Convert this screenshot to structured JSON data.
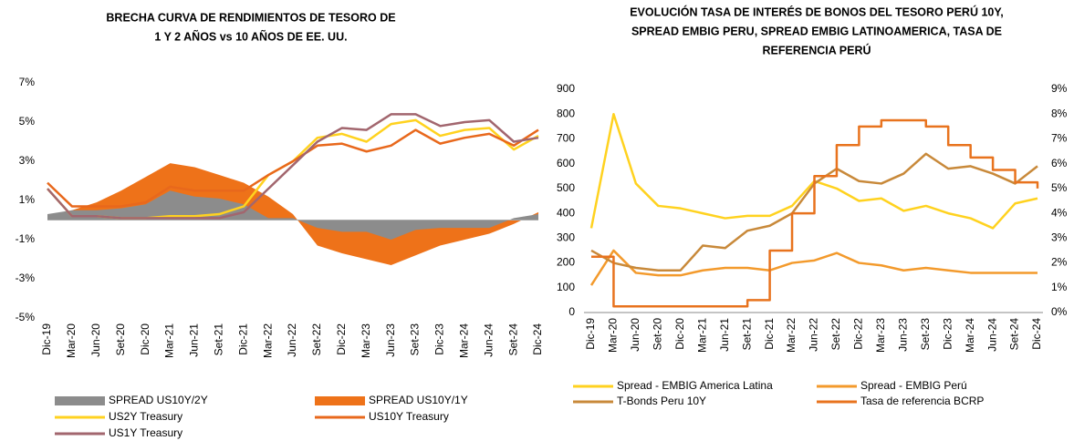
{
  "chart_data": [
    {
      "type": "line",
      "title": [
        "BRECHA CURVA DE RENDIMIENTOS DE TESORO DE",
        "1 Y 2 AÑOS vs 10 AÑOS DE EE. UU."
      ],
      "categories": [
        "Dic-19",
        "Mar-20",
        "Jun-20",
        "Set-20",
        "Dic-20",
        "Mar-21",
        "Jun-21",
        "Set-21",
        "Dic-21",
        "Mar-22",
        "Jun-22",
        "Set-22",
        "Dic-22",
        "Mar-23",
        "Jun-23",
        "Set-23",
        "Dic-23",
        "Mar-24",
        "Jun-24",
        "Set-24",
        "Dic-24"
      ],
      "ylim": [
        -5,
        7
      ],
      "yticks": [
        {
          "value": 7,
          "label": "7%"
        },
        {
          "value": 5,
          "label": "5%"
        },
        {
          "value": 3,
          "label": "3%"
        },
        {
          "value": 1,
          "label": "1%"
        },
        {
          "value": -1,
          "label": "-1%"
        },
        {
          "value": -3,
          "label": "-3%"
        },
        {
          "value": -5,
          "label": "-5%"
        }
      ],
      "grid": false,
      "series": [
        {
          "name": "SPREAD US10Y/1Y",
          "type": "area",
          "color": "#ee7219",
          "values": [
            0.2,
            0.5,
            0.9,
            1.5,
            2.2,
            2.9,
            2.7,
            2.3,
            1.9,
            1.2,
            0.3,
            -1.3,
            -1.7,
            -2.0,
            -2.3,
            -1.8,
            -1.3,
            -1.0,
            -0.7,
            -0.2,
            0.4
          ]
        },
        {
          "name": "SPREAD US10Y/2Y",
          "type": "area",
          "color": "#8c8c8c",
          "values": [
            0.3,
            0.5,
            0.5,
            0.6,
            0.8,
            1.5,
            1.2,
            1.1,
            0.8,
            0.1,
            0.1,
            -0.4,
            -0.6,
            -0.6,
            -1.0,
            -0.5,
            -0.4,
            -0.4,
            -0.4,
            0.1,
            0.3
          ]
        },
        {
          "name": "US2Y Treasury",
          "type": "line",
          "color": "#ffd21f",
          "values": [
            1.6,
            0.2,
            0.2,
            0.1,
            0.1,
            0.2,
            0.2,
            0.3,
            0.7,
            2.3,
            3.0,
            4.2,
            4.4,
            4.0,
            4.9,
            5.1,
            4.3,
            4.6,
            4.7,
            3.6,
            4.3
          ]
        },
        {
          "name": "US10Y Treasury",
          "type": "line",
          "color": "#e8681c",
          "values": [
            1.9,
            0.7,
            0.7,
            0.7,
            0.9,
            1.7,
            1.5,
            1.5,
            1.5,
            2.3,
            3.0,
            3.8,
            3.9,
            3.5,
            3.8,
            4.6,
            3.9,
            4.2,
            4.4,
            3.8,
            4.6
          ]
        },
        {
          "name": "US1Y Treasury",
          "type": "line",
          "color": "#a2666e",
          "values": [
            1.6,
            0.2,
            0.2,
            0.1,
            0.1,
            0.1,
            0.1,
            0.1,
            0.4,
            1.6,
            2.8,
            4.0,
            4.7,
            4.6,
            5.4,
            5.4,
            4.8,
            5.0,
            5.1,
            4.0,
            4.2
          ]
        }
      ]
    },
    {
      "type": "line",
      "title": [
        "EVOLUCIÓN TASA DE INTERÉS DE BONOS DEL TESORO PERÚ 10Y,",
        "SPREAD EMBIG PERU, SPREAD EMBIG LATINOAMERICA, TASA DE",
        "REFERENCIA PERÚ"
      ],
      "categories": [
        "Dic-19",
        "Mar-20",
        "Jun-20",
        "Set-20",
        "Dic-20",
        "Mar-21",
        "Jun-21",
        "Set-21",
        "Dic-21",
        "Mar-22",
        "Jun-22",
        "Set-22",
        "Dic-22",
        "Mar-23",
        "Jun-23",
        "Set-23",
        "Dic-23",
        "Mar-24",
        "Jun-24",
        "Set-24",
        "Dic-24"
      ],
      "ylim": [
        0,
        900
      ],
      "yticks": [
        0,
        100,
        200,
        300,
        400,
        500,
        600,
        700,
        800,
        900
      ],
      "y2lim": [
        0,
        9
      ],
      "y2ticks": [
        {
          "value": 0,
          "label": "0%"
        },
        {
          "value": 1,
          "label": "1%"
        },
        {
          "value": 2,
          "label": "2%"
        },
        {
          "value": 3,
          "label": "3%"
        },
        {
          "value": 4,
          "label": "4%"
        },
        {
          "value": 5,
          "label": "5%"
        },
        {
          "value": 6,
          "label": "6%"
        },
        {
          "value": 7,
          "label": "7%"
        },
        {
          "value": 8,
          "label": "8%"
        },
        {
          "value": 9,
          "label": "9%"
        }
      ],
      "grid": false,
      "series": [
        {
          "name": "Spread - EMBIG America Latina",
          "type": "line",
          "color": "#ffd21f",
          "values": [
            340,
            800,
            520,
            430,
            420,
            400,
            380,
            390,
            390,
            430,
            530,
            500,
            450,
            460,
            410,
            430,
            400,
            380,
            340,
            440,
            460
          ]
        },
        {
          "name": "Spread - EMBIG Perú",
          "type": "line",
          "color": "#f39a2c",
          "values": [
            110,
            250,
            160,
            150,
            150,
            170,
            180,
            180,
            170,
            200,
            210,
            240,
            200,
            190,
            170,
            180,
            170,
            160,
            160,
            160,
            160
          ]
        },
        {
          "name": "T-Bonds Peru 10Y",
          "type": "line",
          "axis": "y2",
          "color": "#c8893a",
          "values": [
            2.5,
            2.0,
            1.8,
            1.7,
            1.7,
            2.7,
            2.6,
            3.3,
            3.5,
            4.0,
            5.2,
            5.8,
            5.3,
            5.2,
            5.6,
            6.4,
            5.8,
            5.9,
            5.6,
            5.2,
            5.9
          ]
        },
        {
          "name": "Tasa de referencia BCRP",
          "type": "line",
          "axis": "y2",
          "step": true,
          "color": "#e8731e",
          "values": [
            2.25,
            0.25,
            0.25,
            0.25,
            0.25,
            0.25,
            0.25,
            0.5,
            2.5,
            4.0,
            5.5,
            6.75,
            7.5,
            7.75,
            7.75,
            7.5,
            6.75,
            6.25,
            5.75,
            5.25,
            5.0
          ]
        }
      ]
    }
  ]
}
